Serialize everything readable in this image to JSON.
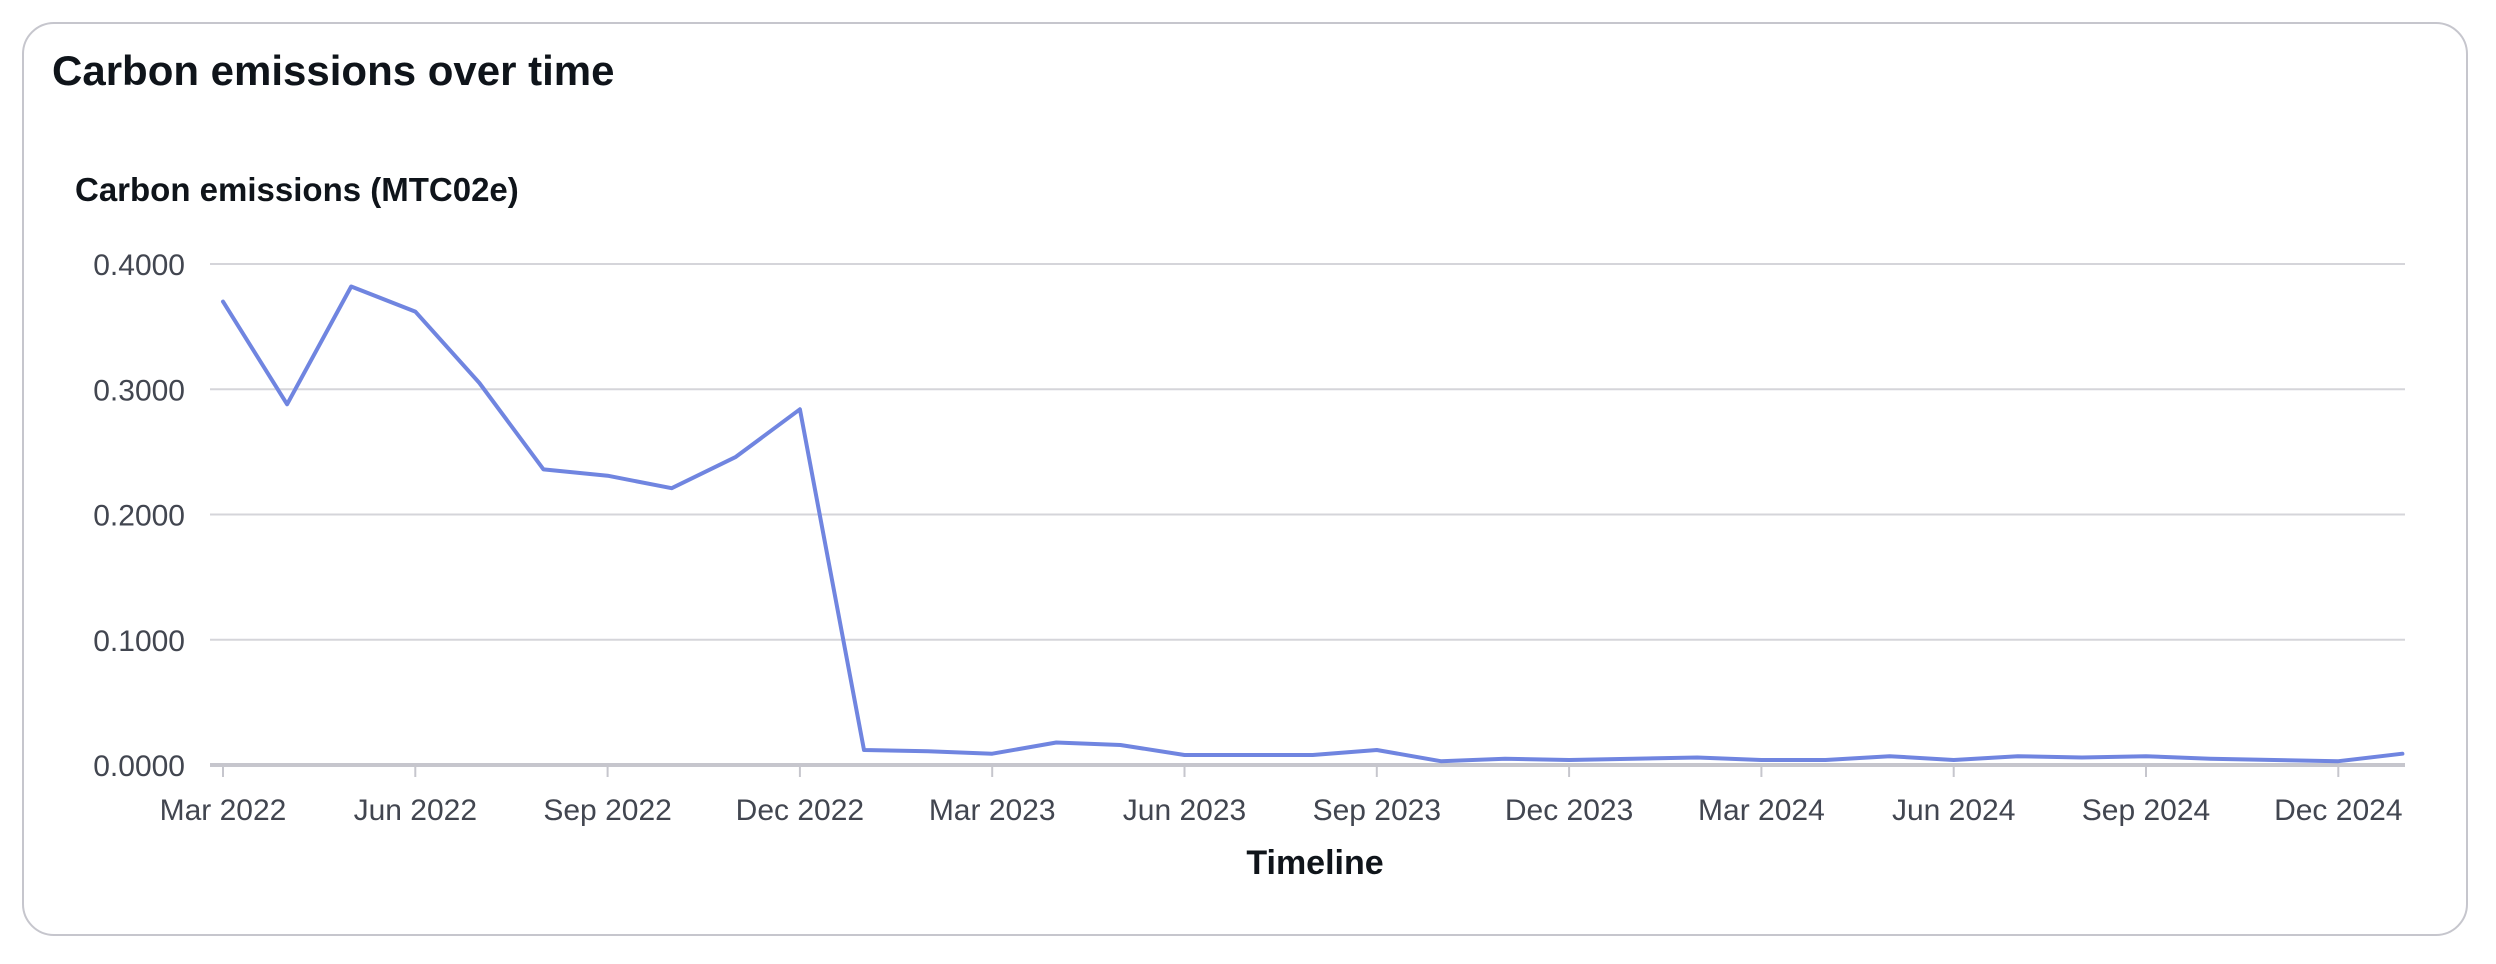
{
  "card": {
    "title": "Carbon emissions over time"
  },
  "chart_data": {
    "type": "line",
    "title": "",
    "ylabel": "Carbon emissions (MTC02e)",
    "xlabel": "Timeline",
    "ylim": [
      0,
      0.4
    ],
    "y_ticks": [
      "0.4000",
      "0.3000",
      "0.2000",
      "0.1000",
      "0.0000"
    ],
    "x_tick_labels": [
      "Mar 2022",
      "Jun 2022",
      "Sep 2022",
      "Dec 2022",
      "Mar 2023",
      "Jun 2023",
      "Sep 2023",
      "Dec 2023",
      "Mar 2024",
      "Jun 2024",
      "Sep 2024",
      "Dec 2024"
    ],
    "grid": true,
    "legend": "none",
    "colors": {
      "line": "#7085e0",
      "grid": "#d5d5da",
      "axis": "#c6c6cd"
    },
    "series": [
      {
        "x": [
          "Mar 2022",
          "Apr 2022",
          "May 2022",
          "Jun 2022",
          "Jul 2022",
          "Aug 2022",
          "Sep 2022",
          "Oct 2022",
          "Nov 2022",
          "Dec 2022",
          "Jan 2023",
          "Feb 2023",
          "Mar 2023",
          "Apr 2023",
          "May 2023",
          "Jun 2023",
          "Jul 2023",
          "Aug 2023",
          "Sep 2023",
          "Oct 2023",
          "Nov 2023",
          "Dec 2023",
          "Jan 2024",
          "Feb 2024",
          "Mar 2024",
          "Apr 2024",
          "May 2024",
          "Jun 2024",
          "Jul 2024",
          "Aug 2024",
          "Sep 2024",
          "Oct 2024",
          "Nov 2024",
          "Dec 2024",
          "Jan 2025"
        ],
        "values": [
          0.37,
          0.288,
          0.382,
          0.362,
          0.305,
          0.236,
          0.231,
          0.221,
          0.246,
          0.284,
          0.012,
          0.011,
          0.009,
          0.018,
          0.016,
          0.008,
          0.008,
          0.008,
          0.012,
          0.003,
          0.005,
          0.004,
          0.005,
          0.006,
          0.004,
          0.004,
          0.007,
          0.004,
          0.007,
          0.006,
          0.007,
          0.005,
          0.004,
          0.003,
          0.009
        ]
      }
    ]
  }
}
